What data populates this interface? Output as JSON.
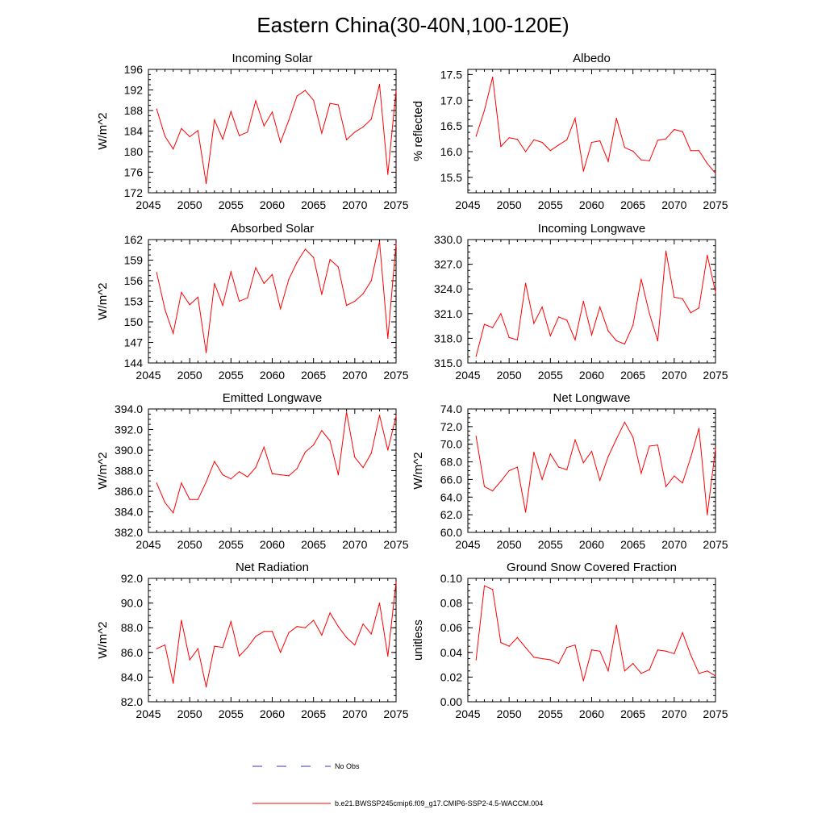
{
  "title": "Eastern China(30-40N,100-120E)",
  "x_ticks": [
    "2045",
    "2050",
    "2055",
    "2060",
    "2065",
    "2070",
    "2075"
  ],
  "legend": {
    "obs_label": "No Obs",
    "model_label": "b.e21.BWSSP245cmip6.f09_g17.CMIP6-SSP2-4.5-WACCM.004",
    "obs_color": "#3333cc",
    "model_color": "#ff0000"
  },
  "chart_data": [
    {
      "type": "line",
      "title": "Incoming Solar",
      "ylabel": "W/m^2",
      "xlim": [
        2045,
        2075
      ],
      "ylim": [
        172,
        196
      ],
      "yticks": [
        "172",
        "176",
        "180",
        "184",
        "188",
        "192",
        "196"
      ],
      "x": [
        2046,
        2047,
        2048,
        2049,
        2050,
        2051,
        2052,
        2053,
        2054,
        2055,
        2056,
        2057,
        2058,
        2059,
        2060,
        2061,
        2062,
        2063,
        2064,
        2065,
        2066,
        2067,
        2068,
        2069,
        2070,
        2071,
        2072,
        2073,
        2074,
        2075
      ],
      "series": [
        {
          "values": [
            188.3,
            183.0,
            180.5,
            184.5,
            182.9,
            184.1,
            173.8,
            186.2,
            182.4,
            187.8,
            183.1,
            183.8,
            189.9,
            185.0,
            187.7,
            181.8,
            186.1,
            190.8,
            191.9,
            190.0,
            183.6,
            189.4,
            189.1,
            182.3,
            183.8,
            184.8,
            186.3,
            193.1,
            175.6,
            191.9
          ]
        }
      ]
    },
    {
      "type": "line",
      "title": "Albedo",
      "ylabel": "% reflected",
      "xlim": [
        2045,
        2075
      ],
      "ylim": [
        15.2,
        17.6
      ],
      "yticks": [
        "15.5",
        "16.0",
        "16.5",
        "17.0",
        "17.5"
      ],
      "x": [
        2046,
        2047,
        2048,
        2049,
        2050,
        2051,
        2052,
        2053,
        2054,
        2055,
        2056,
        2057,
        2058,
        2059,
        2060,
        2061,
        2062,
        2063,
        2064,
        2065,
        2066,
        2067,
        2068,
        2069,
        2070,
        2071,
        2072,
        2073,
        2074,
        2075
      ],
      "series": [
        {
          "values": [
            16.3,
            16.8,
            17.45,
            16.1,
            16.27,
            16.24,
            16.0,
            16.23,
            16.18,
            16.02,
            16.13,
            16.23,
            16.65,
            15.62,
            16.18,
            16.21,
            15.81,
            16.65,
            16.08,
            16.01,
            15.84,
            15.82,
            16.22,
            16.25,
            16.43,
            16.39,
            16.02,
            16.02,
            15.77,
            15.58
          ]
        }
      ]
    },
    {
      "type": "line",
      "title": "Absorbed Solar",
      "ylabel": "W/m^2",
      "xlim": [
        2045,
        2075
      ],
      "ylim": [
        144,
        162
      ],
      "yticks": [
        "144",
        "147",
        "150",
        "153",
        "156",
        "159",
        "162"
      ],
      "x": [
        2046,
        2047,
        2048,
        2049,
        2050,
        2051,
        2052,
        2053,
        2054,
        2055,
        2056,
        2057,
        2058,
        2059,
        2060,
        2061,
        2062,
        2063,
        2064,
        2065,
        2066,
        2067,
        2068,
        2069,
        2070,
        2071,
        2072,
        2073,
        2074,
        2075
      ],
      "series": [
        {
          "values": [
            157.2,
            151.8,
            148.3,
            154.3,
            152.5,
            153.6,
            145.5,
            155.6,
            152.4,
            157.3,
            153.0,
            153.5,
            157.9,
            155.6,
            156.9,
            151.9,
            156.2,
            158.7,
            160.6,
            159.4,
            154.0,
            159.1,
            158.0,
            152.4,
            153.0,
            154.1,
            156.0,
            161.7,
            147.6,
            161.4
          ]
        }
      ]
    },
    {
      "type": "line",
      "title": "Incoming Longwave",
      "ylabel": "",
      "xlim": [
        2045,
        2075
      ],
      "ylim": [
        315.0,
        330.0
      ],
      "yticks": [
        "315.0",
        "318.0",
        "321.0",
        "324.0",
        "327.0",
        "330.0"
      ],
      "x": [
        2046,
        2047,
        2048,
        2049,
        2050,
        2051,
        2052,
        2053,
        2054,
        2055,
        2056,
        2057,
        2058,
        2059,
        2060,
        2061,
        2062,
        2063,
        2064,
        2065,
        2066,
        2067,
        2068,
        2069,
        2070,
        2071,
        2072,
        2073,
        2074,
        2075
      ],
      "series": [
        {
          "values": [
            315.8,
            319.7,
            319.3,
            321.0,
            318.1,
            317.8,
            324.7,
            319.8,
            321.8,
            318.3,
            320.6,
            320.2,
            317.8,
            322.5,
            318.4,
            321.8,
            318.9,
            317.7,
            317.3,
            319.6,
            325.2,
            321.0,
            317.7,
            328.6,
            323.0,
            322.8,
            321.1,
            321.7,
            328.1,
            323.6
          ]
        }
      ]
    },
    {
      "type": "line",
      "title": "Emitted Longwave",
      "ylabel": "W/m^2",
      "xlim": [
        2045,
        2075
      ],
      "ylim": [
        382.0,
        394.0
      ],
      "yticks": [
        "382.0",
        "384.0",
        "386.0",
        "388.0",
        "390.0",
        "392.0",
        "394.0"
      ],
      "x": [
        2046,
        2047,
        2048,
        2049,
        2050,
        2051,
        2052,
        2053,
        2054,
        2055,
        2056,
        2057,
        2058,
        2059,
        2060,
        2061,
        2062,
        2063,
        2064,
        2065,
        2066,
        2067,
        2068,
        2069,
        2070,
        2071,
        2072,
        2073,
        2074,
        2075
      ],
      "series": [
        {
          "values": [
            386.8,
            384.9,
            383.9,
            386.8,
            385.2,
            385.2,
            386.9,
            388.9,
            387.6,
            387.2,
            387.9,
            387.4,
            388.3,
            390.3,
            387.7,
            387.6,
            387.5,
            388.2,
            389.8,
            390.5,
            391.9,
            390.9,
            387.6,
            393.7,
            389.3,
            388.3,
            389.7,
            393.4,
            390.0,
            393.3
          ]
        }
      ]
    },
    {
      "type": "line",
      "title": "Net Longwave",
      "ylabel": "W/m^2",
      "xlim": [
        2045,
        2075
      ],
      "ylim": [
        60.0,
        74.0
      ],
      "yticks": [
        "60.0",
        "62.0",
        "64.0",
        "66.0",
        "68.0",
        "70.0",
        "72.0",
        "74.0"
      ],
      "x": [
        2046,
        2047,
        2048,
        2049,
        2050,
        2051,
        2052,
        2053,
        2054,
        2055,
        2056,
        2057,
        2058,
        2059,
        2060,
        2061,
        2062,
        2063,
        2064,
        2065,
        2066,
        2067,
        2068,
        2069,
        2070,
        2071,
        2072,
        2073,
        2074,
        2075
      ],
      "series": [
        {
          "values": [
            70.9,
            65.2,
            64.7,
            65.8,
            67.0,
            67.4,
            62.3,
            69.1,
            66.0,
            68.9,
            67.4,
            67.1,
            70.5,
            67.9,
            69.2,
            65.9,
            68.6,
            70.6,
            72.5,
            70.8,
            66.7,
            69.8,
            69.9,
            65.2,
            66.4,
            65.6,
            68.5,
            71.8,
            62.0,
            69.5
          ]
        }
      ]
    },
    {
      "type": "line",
      "title": "Net Radiation",
      "ylabel": "W/m^2",
      "xlim": [
        2045,
        2075
      ],
      "ylim": [
        82.0,
        92.0
      ],
      "yticks": [
        "82.0",
        "84.0",
        "86.0",
        "88.0",
        "90.0",
        "92.0"
      ],
      "x": [
        2046,
        2047,
        2048,
        2049,
        2050,
        2051,
        2052,
        2053,
        2054,
        2055,
        2056,
        2057,
        2058,
        2059,
        2060,
        2061,
        2062,
        2063,
        2064,
        2065,
        2066,
        2067,
        2068,
        2069,
        2070,
        2071,
        2072,
        2073,
        2074,
        2075
      ],
      "series": [
        {
          "values": [
            86.3,
            86.6,
            83.5,
            88.6,
            85.4,
            86.3,
            83.2,
            86.5,
            86.4,
            88.5,
            85.7,
            86.4,
            87.3,
            87.7,
            87.7,
            86.0,
            87.6,
            88.1,
            88.0,
            88.6,
            87.4,
            89.2,
            88.1,
            87.2,
            86.6,
            88.3,
            87.5,
            90.0,
            85.7,
            91.7
          ]
        }
      ]
    },
    {
      "type": "line",
      "title": "Ground Snow Covered Fraction",
      "ylabel": "unitless",
      "xlim": [
        2045,
        2075
      ],
      "ylim": [
        0.0,
        0.1
      ],
      "yticks": [
        "0.00",
        "0.02",
        "0.04",
        "0.06",
        "0.08",
        "0.10"
      ],
      "x": [
        2046,
        2047,
        2048,
        2049,
        2050,
        2051,
        2052,
        2053,
        2054,
        2055,
        2056,
        2057,
        2058,
        2059,
        2060,
        2061,
        2062,
        2063,
        2064,
        2065,
        2066,
        2067,
        2068,
        2069,
        2070,
        2071,
        2072,
        2073,
        2074,
        2075
      ],
      "series": [
        {
          "values": [
            0.034,
            0.094,
            0.091,
            0.048,
            0.045,
            0.052,
            0.044,
            0.036,
            0.035,
            0.034,
            0.031,
            0.044,
            0.046,
            0.017,
            0.042,
            0.041,
            0.025,
            0.062,
            0.025,
            0.031,
            0.023,
            0.026,
            0.042,
            0.041,
            0.039,
            0.056,
            0.038,
            0.023,
            0.025,
            0.021
          ]
        }
      ]
    }
  ]
}
